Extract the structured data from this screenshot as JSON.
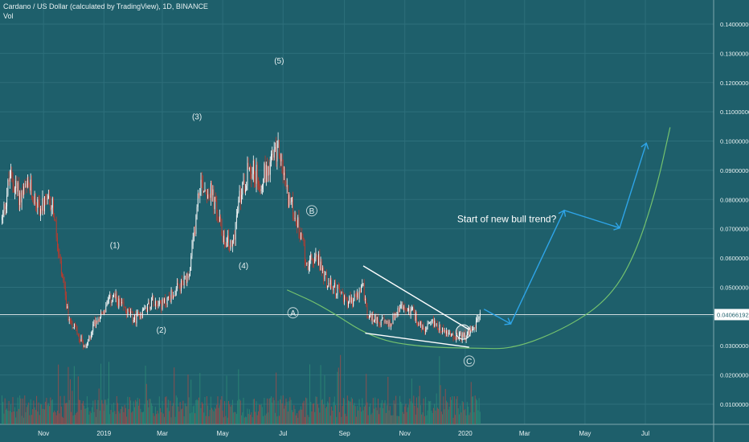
{
  "header": {
    "symbol_line": "Cardano / US Dollar (calculated by TradingView), 1D, BINANCE",
    "volume_label": "Vol"
  },
  "colors": {
    "background": "#1e5f6b",
    "candle_up": "#ffffff",
    "candle_down": "#c0392b",
    "volume_up": "#2f8f77",
    "volume_down": "#b24a45",
    "projection_arrow": "#2ea4e8",
    "cup_curve": "#74c26e",
    "wedge_lines": "#ffffff",
    "annotation_text": "#e8f1f2"
  },
  "chart_data": {
    "type": "candlestick",
    "title": "Cardano / US Dollar (calculated by TradingView), 1D, BINANCE",
    "y_axis": {
      "ticks": [
        0.14,
        0.13,
        0.12,
        0.11,
        0.1,
        0.09,
        0.08,
        0.07,
        0.06,
        0.05,
        0.04,
        0.03,
        0.02,
        0.01
      ],
      "tick_labels": [
        "0.14000000",
        "0.13000000",
        "0.12000000",
        "0.11000000",
        "0.10000000",
        "0.09000000",
        "0.08000000",
        "0.07000000",
        "0.06000000",
        "0.05000000",
        "0.04000000",
        "0.03000000",
        "0.02000000",
        "0.01000000"
      ],
      "current_price": 0.04066192,
      "current_price_label": "0.04066192"
    },
    "x_axis": {
      "ticks": [
        "2018-11-01",
        "2019-01-01",
        "2019-03-01",
        "2019-05-01",
        "2019-07-01",
        "2019-09-01",
        "2019-11-01",
        "2020-01-01",
        "2020-03-01",
        "2020-05-01",
        "2020-07-01"
      ],
      "tick_labels": [
        "Nov",
        "2019",
        "Mar",
        "May",
        "Jul",
        "Sep",
        "Nov",
        "2020",
        "Mar",
        "May",
        "Jul"
      ],
      "range": [
        "2018-09-18",
        "2020-09-08"
      ]
    },
    "price_anchors": [
      [
        "2018-09-20",
        0.073
      ],
      [
        "2018-09-28",
        0.088
      ],
      [
        "2018-10-08",
        0.081
      ],
      [
        "2018-10-18",
        0.084
      ],
      [
        "2018-10-28",
        0.077
      ],
      [
        "2018-11-10",
        0.079
      ],
      [
        "2018-11-16",
        0.061
      ],
      [
        "2018-11-26",
        0.04
      ],
      [
        "2018-12-06",
        0.034
      ],
      [
        "2018-12-14",
        0.029
      ],
      [
        "2018-12-22",
        0.038
      ],
      [
        "2019-01-01",
        0.042
      ],
      [
        "2019-01-10",
        0.047
      ],
      [
        "2019-01-20",
        0.043
      ],
      [
        "2019-02-01",
        0.039
      ],
      [
        "2019-02-10",
        0.042
      ],
      [
        "2019-02-20",
        0.046
      ],
      [
        "2019-03-01",
        0.044
      ],
      [
        "2019-03-15",
        0.049
      ],
      [
        "2019-03-28",
        0.053
      ],
      [
        "2019-04-03",
        0.071
      ],
      [
        "2019-04-08",
        0.086
      ],
      [
        "2019-04-20",
        0.082
      ],
      [
        "2019-05-01",
        0.068
      ],
      [
        "2019-05-10",
        0.063
      ],
      [
        "2019-05-18",
        0.08
      ],
      [
        "2019-05-28",
        0.092
      ],
      [
        "2019-06-08",
        0.086
      ],
      [
        "2019-06-18",
        0.093
      ],
      [
        "2019-06-27",
        0.097
      ],
      [
        "2019-07-05",
        0.082
      ],
      [
        "2019-07-15",
        0.073
      ],
      [
        "2019-07-25",
        0.058
      ],
      [
        "2019-08-05",
        0.06
      ],
      [
        "2019-08-15",
        0.051
      ],
      [
        "2019-08-25",
        0.049
      ],
      [
        "2019-09-05",
        0.045
      ],
      [
        "2019-09-12",
        0.046
      ],
      [
        "2019-09-20",
        0.05
      ],
      [
        "2019-09-24",
        0.04
      ],
      [
        "2019-10-05",
        0.039
      ],
      [
        "2019-10-15",
        0.037
      ],
      [
        "2019-10-28",
        0.043
      ],
      [
        "2019-11-08",
        0.042
      ],
      [
        "2019-11-20",
        0.035
      ],
      [
        "2019-12-01",
        0.038
      ],
      [
        "2019-12-10",
        0.035
      ],
      [
        "2019-12-20",
        0.033
      ],
      [
        "2020-01-01",
        0.033
      ],
      [
        "2020-01-10",
        0.036
      ],
      [
        "2020-01-16",
        0.041
      ]
    ],
    "price_range": [
      0.028,
      0.117
    ],
    "volume_range_fraction": [
      0.0,
      0.11
    ],
    "wave_labels": [
      {
        "text": "(1)",
        "date": "2019-01-12",
        "price": 0.0635
      },
      {
        "text": "(2)",
        "date": "2019-02-28",
        "price": 0.0345
      },
      {
        "text": "(3)",
        "date": "2019-04-05",
        "price": 0.1075
      },
      {
        "text": "(4)",
        "date": "2019-05-22",
        "price": 0.0565
      },
      {
        "text": "(5)",
        "date": "2019-06-27",
        "price": 0.1265
      },
      {
        "text": "A",
        "date": "2019-07-11",
        "price": 0.0403,
        "circled": true
      },
      {
        "text": "B",
        "date": "2019-07-30",
        "price": 0.0752,
        "circled": true
      },
      {
        "text": "C",
        "date": "2020-01-05",
        "price": 0.0238,
        "circled": true
      }
    ],
    "annotations": [
      {
        "text": "Start of new bull trend?",
        "date": "2020-02-12",
        "price": 0.0723
      }
    ],
    "wedge": {
      "upper": [
        [
          "2019-09-20",
          0.0573
        ],
        [
          "2020-01-05",
          0.0355
        ]
      ],
      "lower": [
        [
          "2019-09-22",
          0.0343
        ],
        [
          "2020-01-05",
          0.0295
        ]
      ]
    },
    "breakout_circle": {
      "date": "2019-12-30",
      "price": 0.0347
    },
    "projection_arrow": [
      [
        "2020-01-20",
        0.0425
      ],
      [
        "2020-02-16",
        0.0375
      ],
      [
        "2020-04-10",
        0.0763
      ],
      [
        "2020-06-05",
        0.0703
      ],
      [
        "2020-07-02",
        0.0993
      ]
    ],
    "cup_curve": [
      [
        "2019-07-05",
        0.0491
      ],
      [
        "2019-08-10",
        0.0436
      ],
      [
        "2019-09-30",
        0.0323
      ],
      [
        "2019-11-20",
        0.0295
      ],
      [
        "2020-01-10",
        0.0292
      ],
      [
        "2020-02-20",
        0.0289
      ],
      [
        "2020-04-15",
        0.0366
      ],
      [
        "2020-05-25",
        0.0461
      ],
      [
        "2020-06-20",
        0.0604
      ],
      [
        "2020-07-12",
        0.0833
      ],
      [
        "2020-07-26",
        0.1047
      ]
    ]
  }
}
